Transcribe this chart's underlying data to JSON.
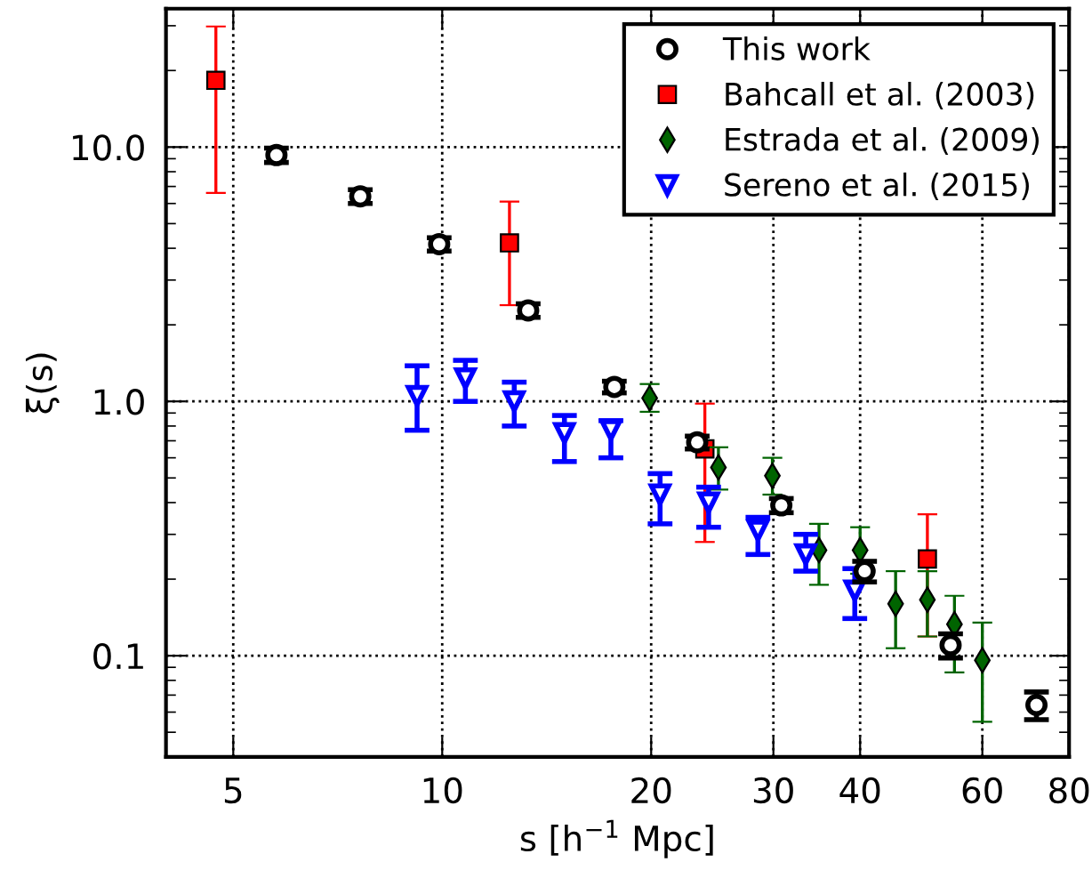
{
  "chart_data": {
    "type": "scatter",
    "xlabel": "s [h$^{−1}$ Mpc]",
    "ylabel": "ξ(s)",
    "log": "xy",
    "xlim": [
      4,
      80
    ],
    "ylim": [
      0.04,
      35
    ],
    "xticks": [
      5,
      10,
      20,
      30,
      40,
      60,
      80
    ],
    "yticks": [
      {
        "value": 0.1,
        "label": "0.1"
      },
      {
        "value": 1,
        "label": "1.0"
      },
      {
        "value": 10,
        "label": "10.0"
      }
    ],
    "grid": true,
    "legend": "top right",
    "series": [
      {
        "name": "This work",
        "color": "#000000",
        "marker": "circle",
        "x": [
          5.77,
          7.62,
          9.9,
          13.3,
          17.7,
          23.3,
          30.8,
          40.6,
          54,
          71.8
        ],
        "values": [
          9.3,
          6.4,
          4.15,
          2.28,
          1.14,
          0.69,
          0.39,
          0.215,
          0.11,
          0.064
        ],
        "errors": [
          0.6,
          0.4,
          0.25,
          0.14,
          0.06,
          0.04,
          0.025,
          0.02,
          0.012,
          0.008
        ]
      },
      {
        "name": "Bahcall et al. (2003)",
        "color": "#ff0000",
        "marker": "square",
        "x": [
          4.72,
          12.5,
          23.9,
          50
        ],
        "values": [
          18.3,
          4.2,
          0.65,
          0.24
        ],
        "errors": [
          [
            6.6,
            29.8
          ],
          [
            2.39,
            6.1
          ],
          [
            0.28,
            0.98
          ],
          [
            0.119,
            0.36
          ]
        ]
      },
      {
        "name": "Estrada et al. (2009)",
        "color": "#006400",
        "marker": "diamond",
        "x": [
          19.9,
          25,
          29.9,
          34.9,
          40,
          45,
          50,
          54.7,
          60
        ],
        "values": [
          1.03,
          0.55,
          0.51,
          0.26,
          0.26,
          0.16,
          0.166,
          0.133,
          0.096
        ],
        "errors": [
          [
            0.91,
            1.17
          ],
          [
            0.45,
            0.66
          ],
          [
            0.43,
            0.6
          ],
          [
            0.19,
            0.33
          ],
          [
            0.21,
            0.32
          ],
          [
            0.107,
            0.215
          ],
          [
            0.119,
            0.215
          ],
          [
            0.086,
            0.172
          ],
          [
            0.055,
            0.135
          ]
        ]
      },
      {
        "name": "Sereno et al. (2015)",
        "color": "#0000ff",
        "marker": "triangle",
        "x": [
          9.2,
          10.8,
          12.7,
          15,
          17.5,
          20.6,
          24.2,
          28.5,
          33.4,
          39.3
        ],
        "values": [
          1.05,
          1.23,
          1.0,
          0.75,
          0.77,
          0.43,
          0.4,
          0.31,
          0.25,
          0.18
        ],
        "errors": [
          [
            0.77,
            1.38
          ],
          [
            1.0,
            1.45
          ],
          [
            0.8,
            1.19
          ],
          [
            0.58,
            0.88
          ],
          [
            0.6,
            0.84
          ],
          [
            0.33,
            0.52
          ],
          [
            0.32,
            0.46
          ],
          [
            0.25,
            0.35
          ],
          [
            0.215,
            0.3
          ],
          [
            0.14,
            0.22
          ]
        ]
      }
    ]
  }
}
